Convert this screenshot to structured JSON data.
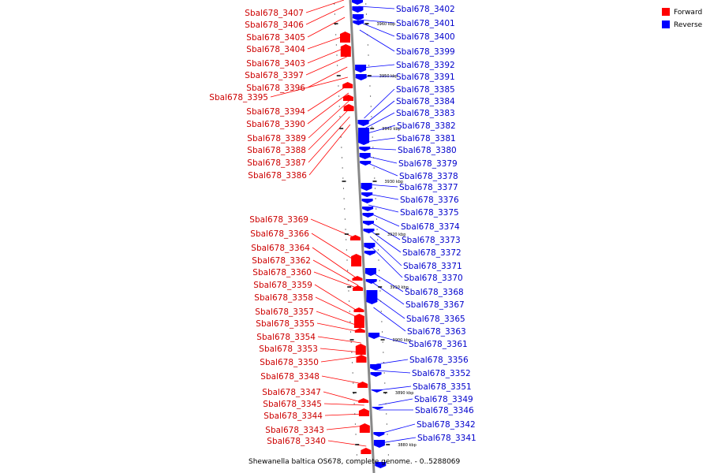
{
  "caption": "Shewanella baltica OS678, complete genome. - 0..5288069",
  "legend": [
    {
      "label": "Forward",
      "color": "#ff0000"
    },
    {
      "label": "Reverse",
      "color": "#0000ff"
    }
  ],
  "colors": {
    "forward": "#ff0000",
    "reverse": "#0000ff",
    "forward_text": "#cc0000",
    "reverse_text": "#0000cc",
    "backbone": "#888888"
  },
  "kbp_marks": [
    "3960 kbp",
    "3950 kbp",
    "3940 kbp",
    "3930 kbp",
    "3920 kbp",
    "3910 kbp",
    "3900 kbp",
    "3890 kbp",
    "3880 kbp"
  ],
  "forward_labels": [
    "Sbal678_3407",
    "Sbal678_3406",
    "Sbal678_3405",
    "Sbal678_3404",
    "Sbal678_3403",
    "Sbal678_3397",
    "Sbal678_3396",
    "Sbal678_3395",
    "Sbal678_3394",
    "Sbal678_3390",
    "Sbal678_3389",
    "Sbal678_3388",
    "Sbal678_3387",
    "Sbal678_3386",
    "Sbal678_3369",
    "Sbal678_3366",
    "Sbal678_3364",
    "Sbal678_3362",
    "Sbal678_3360",
    "Sbal678_3359",
    "Sbal678_3358",
    "Sbal678_3357",
    "Sbal678_3355",
    "Sbal678_3354",
    "Sbal678_3353",
    "Sbal678_3350",
    "Sbal678_3348",
    "Sbal678_3347",
    "Sbal678_3345",
    "Sbal678_3344",
    "Sbal678_3343",
    "Sbal678_3340"
  ],
  "reverse_labels": [
    "Sbal678_3402",
    "Sbal678_3401",
    "Sbal678_3400",
    "Sbal678_3399",
    "Sbal678_3392",
    "Sbal678_3391",
    "Sbal678_3385",
    "Sbal678_3384",
    "Sbal678_3383",
    "Sbal678_3382",
    "Sbal678_3381",
    "Sbal678_3380",
    "Sbal678_3379",
    "Sbal678_3378",
    "Sbal678_3377",
    "Sbal678_3376",
    "Sbal678_3375",
    "Sbal678_3374",
    "Sbal678_3373",
    "Sbal678_3372",
    "Sbal678_3371",
    "Sbal678_3370",
    "Sbal678_3368",
    "Sbal678_3367",
    "Sbal678_3365",
    "Sbal678_3363",
    "Sbal678_3361",
    "Sbal678_3356",
    "Sbal678_3352",
    "Sbal678_3351",
    "Sbal678_3349",
    "Sbal678_3346",
    "Sbal678_3342",
    "Sbal678_3341"
  ]
}
